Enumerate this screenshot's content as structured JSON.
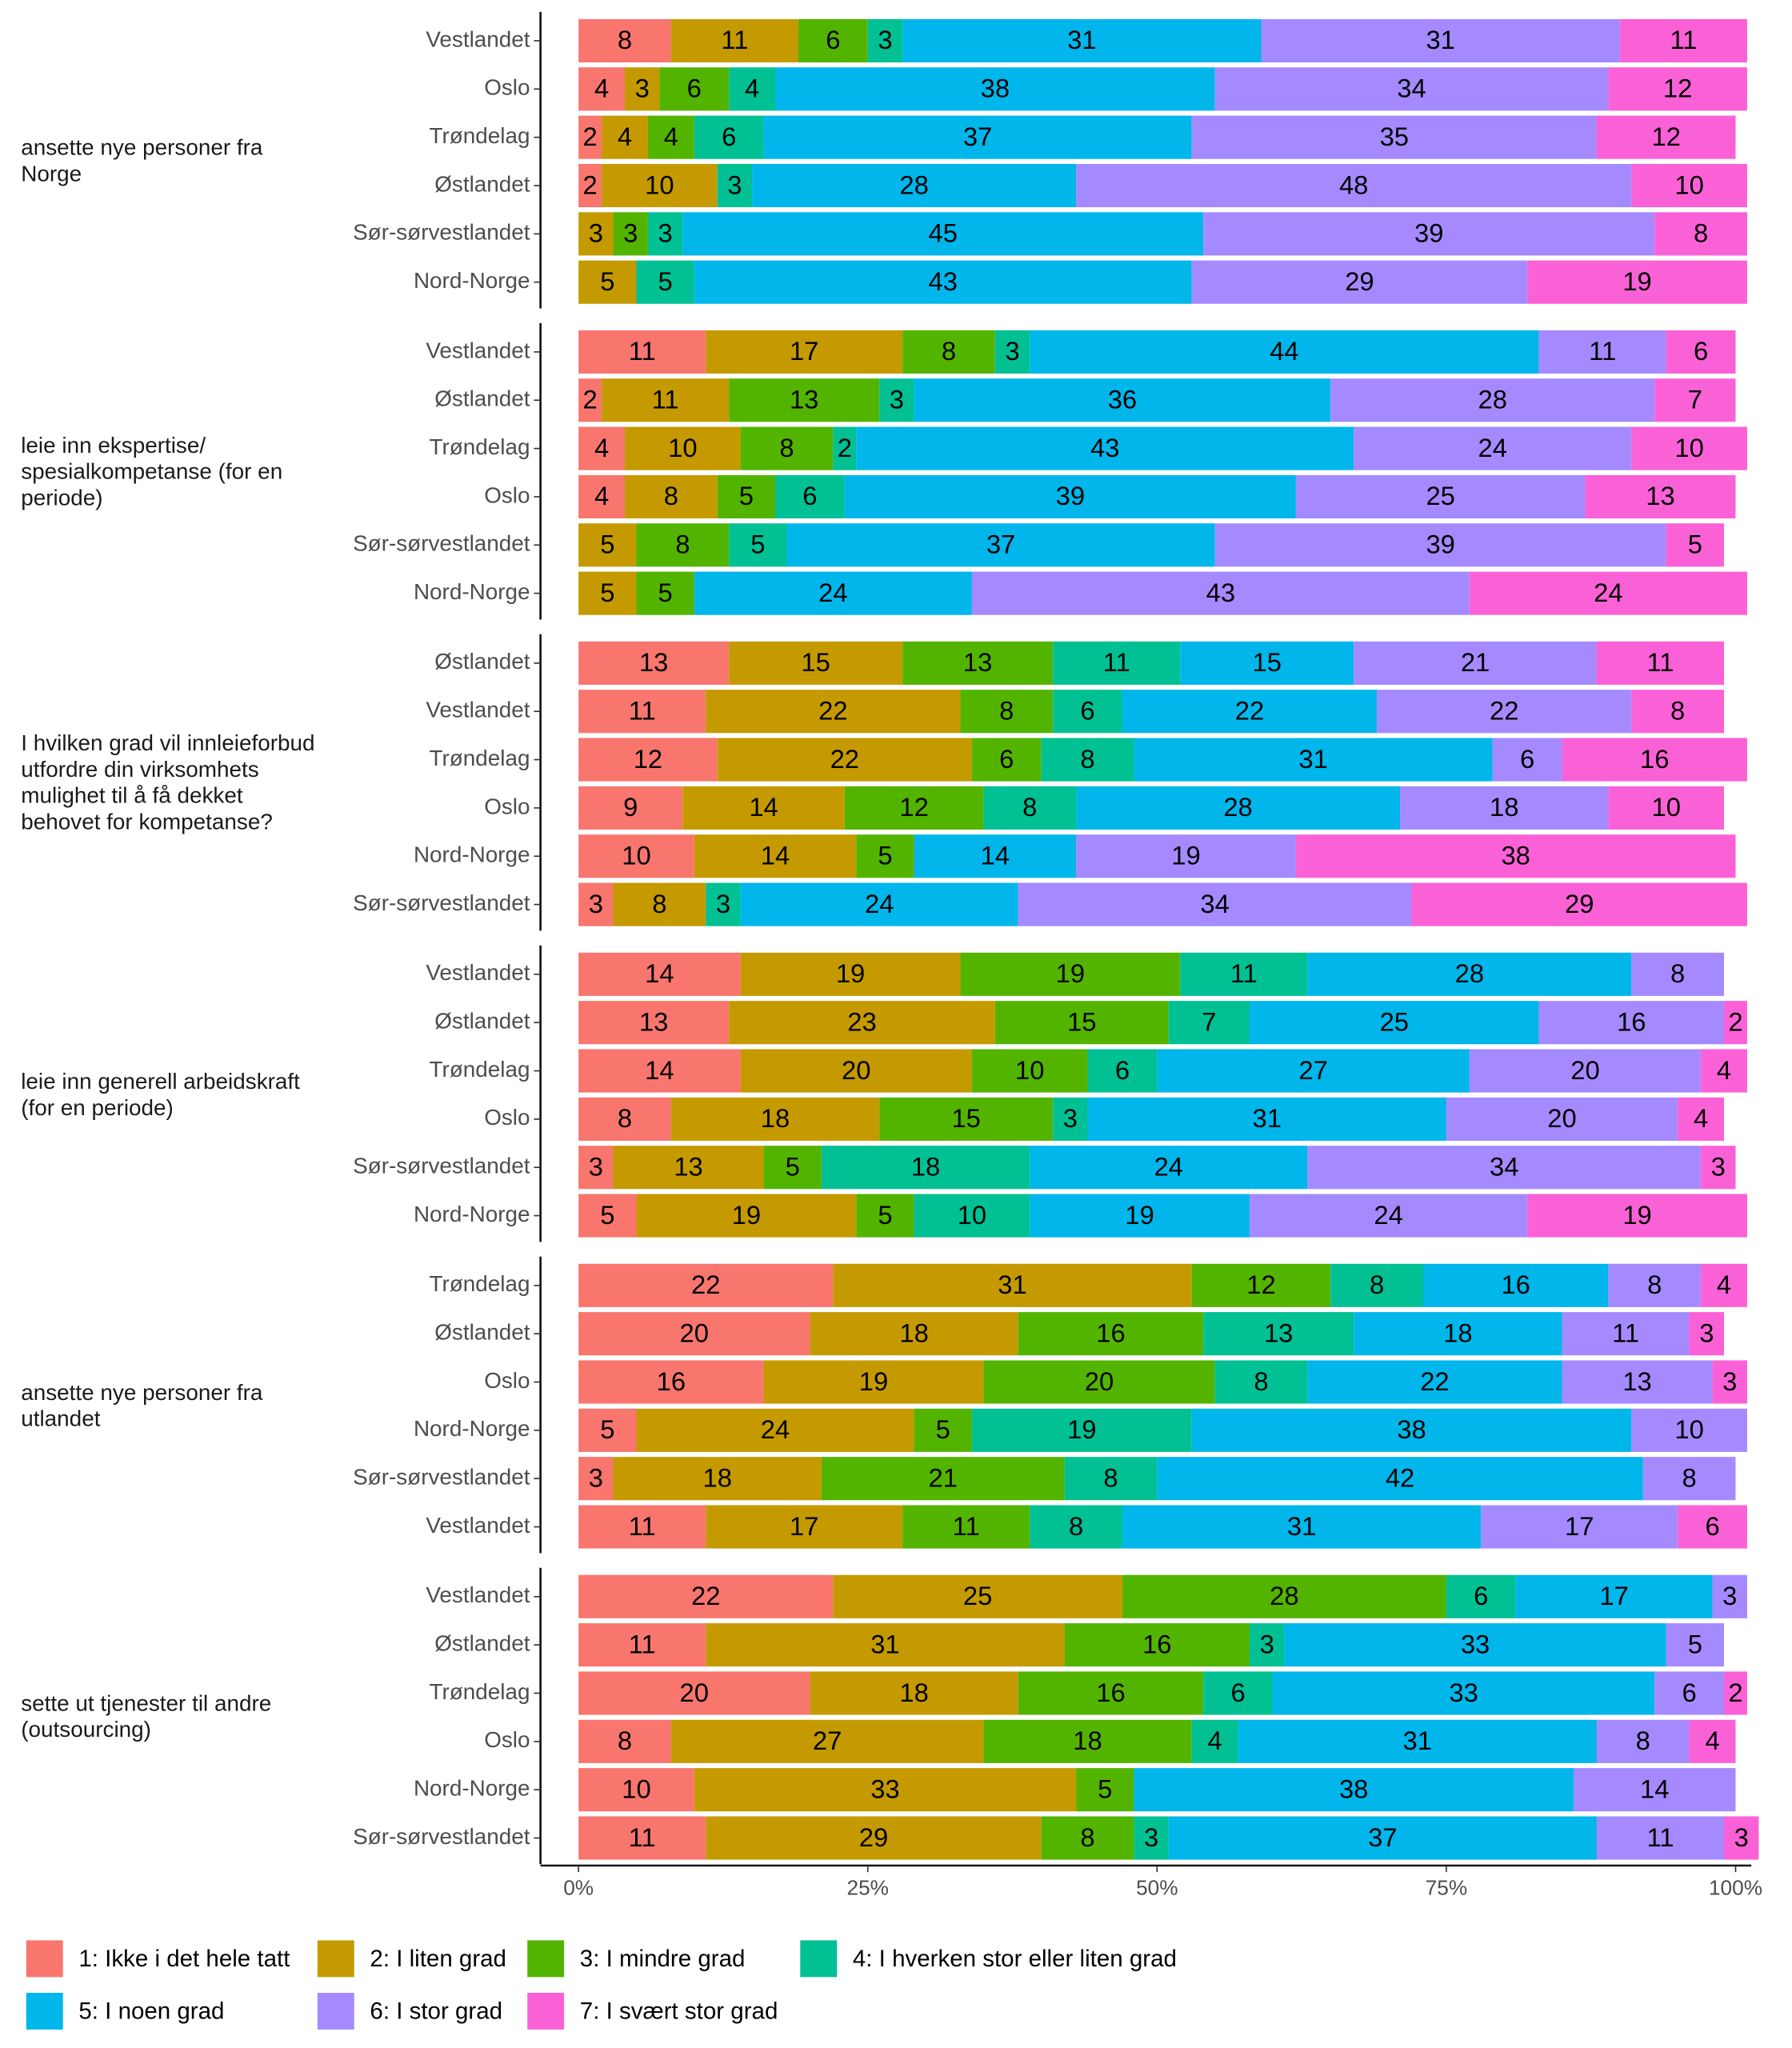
{
  "chart_data": {
    "type": "bar",
    "stacked": true,
    "orientation": "horizontal",
    "xlim": [
      0,
      100
    ],
    "xticks": [
      {
        "value": 0,
        "label": "0%"
      },
      {
        "value": 25,
        "label": "25%"
      },
      {
        "value": 50,
        "label": "50%"
      },
      {
        "value": 75,
        "label": "75%"
      },
      {
        "value": 100,
        "label": "100%"
      }
    ],
    "series": [
      {
        "name": "1: Ikke i det hele tatt",
        "color": "#F8766D"
      },
      {
        "name": "2: I liten grad",
        "color": "#C49A00"
      },
      {
        "name": "3: I mindre grad",
        "color": "#53B400"
      },
      {
        "name": "4: I hverken stor eller liten grad",
        "color": "#00C094"
      },
      {
        "name": "5: I noen grad",
        "color": "#00B6EB"
      },
      {
        "name": "6: I stor grad",
        "color": "#A58AFF"
      },
      {
        "name": "7: I svært stor grad",
        "color": "#FB61D7"
      }
    ],
    "groups": [
      {
        "label": "ansette nye personer fra Norge",
        "rows": [
          {
            "category": "Vestlandet",
            "values": [
              8,
              11,
              6,
              3,
              31,
              31,
              11
            ]
          },
          {
            "category": "Oslo",
            "values": [
              4,
              3,
              6,
              4,
              38,
              34,
              12
            ]
          },
          {
            "category": "Trøndelag",
            "values": [
              2,
              4,
              4,
              6,
              37,
              35,
              12
            ]
          },
          {
            "category": "Østlandet",
            "values": [
              2,
              10,
              null,
              3,
              28,
              48,
              10
            ]
          },
          {
            "category": "Sør-sørvestlandet",
            "values": [
              null,
              3,
              3,
              3,
              45,
              39,
              8
            ]
          },
          {
            "category": "Nord-Norge",
            "values": [
              null,
              5,
              null,
              5,
              43,
              29,
              19
            ]
          }
        ]
      },
      {
        "label": "leie inn ekspertise/ spesialkompetanse (for en periode)",
        "rows": [
          {
            "category": "Vestlandet",
            "values": [
              11,
              17,
              8,
              3,
              44,
              11,
              6
            ]
          },
          {
            "category": "Østlandet",
            "values": [
              2,
              11,
              13,
              3,
              36,
              28,
              7
            ]
          },
          {
            "category": "Trøndelag",
            "values": [
              4,
              10,
              8,
              2,
              43,
              24,
              10
            ]
          },
          {
            "category": "Oslo",
            "values": [
              4,
              8,
              5,
              6,
              39,
              25,
              13
            ]
          },
          {
            "category": "Sør-sørvestlandet",
            "values": [
              null,
              5,
              8,
              5,
              37,
              39,
              5
            ]
          },
          {
            "category": "Nord-Norge",
            "values": [
              null,
              5,
              5,
              null,
              24,
              43,
              24
            ]
          }
        ]
      },
      {
        "label": "I hvilken grad vil innleieforbud utfordre din virksomhets mulighet til å få dekket behovet for kompetanse?",
        "rows": [
          {
            "category": "Østlandet",
            "values": [
              13,
              15,
              13,
              11,
              15,
              21,
              11
            ]
          },
          {
            "category": "Vestlandet",
            "values": [
              11,
              22,
              8,
              6,
              22,
              22,
              8
            ]
          },
          {
            "category": "Trøndelag",
            "values": [
              12,
              22,
              6,
              8,
              31,
              6,
              16
            ]
          },
          {
            "category": "Oslo",
            "values": [
              9,
              14,
              12,
              8,
              28,
              18,
              10
            ]
          },
          {
            "category": "Nord-Norge",
            "values": [
              10,
              14,
              5,
              null,
              14,
              19,
              38
            ]
          },
          {
            "category": "Sør-sørvestlandet",
            "values": [
              3,
              8,
              null,
              3,
              24,
              34,
              29
            ]
          }
        ]
      },
      {
        "label": "leie inn generell arbeidskraft (for en periode)",
        "rows": [
          {
            "category": "Vestlandet",
            "values": [
              14,
              19,
              19,
              11,
              28,
              8,
              null
            ]
          },
          {
            "category": "Østlandet",
            "values": [
              13,
              23,
              15,
              7,
              25,
              16,
              2
            ]
          },
          {
            "category": "Trøndelag",
            "values": [
              14,
              20,
              10,
              6,
              27,
              20,
              4
            ]
          },
          {
            "category": "Oslo",
            "values": [
              8,
              18,
              15,
              3,
              31,
              20,
              4
            ]
          },
          {
            "category": "Sør-sørvestlandet",
            "values": [
              3,
              13,
              5,
              18,
              24,
              34,
              3
            ]
          },
          {
            "category": "Nord-Norge",
            "values": [
              5,
              19,
              5,
              10,
              19,
              24,
              19
            ]
          }
        ]
      },
      {
        "label": "ansette nye personer fra utlandet",
        "rows": [
          {
            "category": "Trøndelag",
            "values": [
              22,
              31,
              12,
              8,
              16,
              8,
              4
            ]
          },
          {
            "category": "Østlandet",
            "values": [
              20,
              18,
              16,
              13,
              18,
              11,
              3
            ]
          },
          {
            "category": "Oslo",
            "values": [
              16,
              19,
              20,
              8,
              22,
              13,
              3
            ]
          },
          {
            "category": "Nord-Norge",
            "values": [
              5,
              24,
              5,
              19,
              38,
              10,
              null
            ]
          },
          {
            "category": "Sør-sørvestlandet",
            "values": [
              3,
              18,
              21,
              8,
              42,
              8,
              null
            ]
          },
          {
            "category": "Vestlandet",
            "values": [
              11,
              17,
              11,
              8,
              31,
              17,
              6
            ]
          }
        ]
      },
      {
        "label": "sette ut tjenester til andre (outsourcing)",
        "rows": [
          {
            "category": "Vestlandet",
            "values": [
              22,
              25,
              28,
              6,
              17,
              3,
              null
            ]
          },
          {
            "category": "Østlandet",
            "values": [
              11,
              31,
              16,
              3,
              33,
              5,
              null
            ]
          },
          {
            "category": "Trøndelag",
            "values": [
              20,
              18,
              16,
              6,
              33,
              6,
              2
            ]
          },
          {
            "category": "Oslo",
            "values": [
              8,
              27,
              18,
              4,
              31,
              8,
              4
            ]
          },
          {
            "category": "Nord-Norge",
            "values": [
              10,
              33,
              5,
              null,
              38,
              14,
              null
            ]
          },
          {
            "category": "Sør-sørvestlandet",
            "values": [
              11,
              29,
              8,
              3,
              37,
              11,
              3
            ]
          }
        ]
      }
    ]
  }
}
